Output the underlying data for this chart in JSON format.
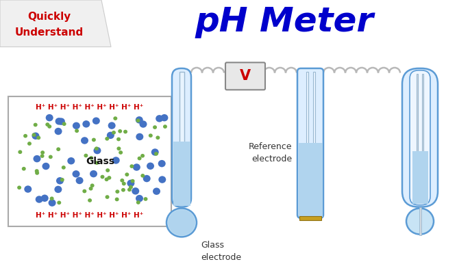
{
  "title": "pH Meter",
  "title_color": "#0000cc",
  "title_fontsize": 36,
  "quickly_line1": "Quickly",
  "quickly_line2": "Understand",
  "quickly_color": "#cc0000",
  "bg_color": "#ffffff",
  "glass_electrode_label": "Glass\nelectrode",
  "reference_electrode_label": "Reference\nelectrode",
  "voltmeter_label": "V",
  "voltmeter_color": "#cc0000",
  "glass_label": "Glass",
  "h_plus_row": "H⁺ H⁺ H⁺ H⁺ H⁺ H⁺ H⁺ H⁺ H⁺",
  "electrode_fill_light": "#ddeeff",
  "electrode_fill_liq": "#b0d4ee",
  "electrode_stroke": "#5b9bd5",
  "inner_rod_fill": "#e8f4ff",
  "inner_rod_stroke": "#9ab8d0",
  "blue_dot_color": "#4472c4",
  "green_dot_color": "#70ad47",
  "red_text_color": "#cc0000",
  "coil_color": "#b8b8b8",
  "junction_color": "#c8a020",
  "label_color": "#333333",
  "box_edge_color": "#aaaaaa"
}
